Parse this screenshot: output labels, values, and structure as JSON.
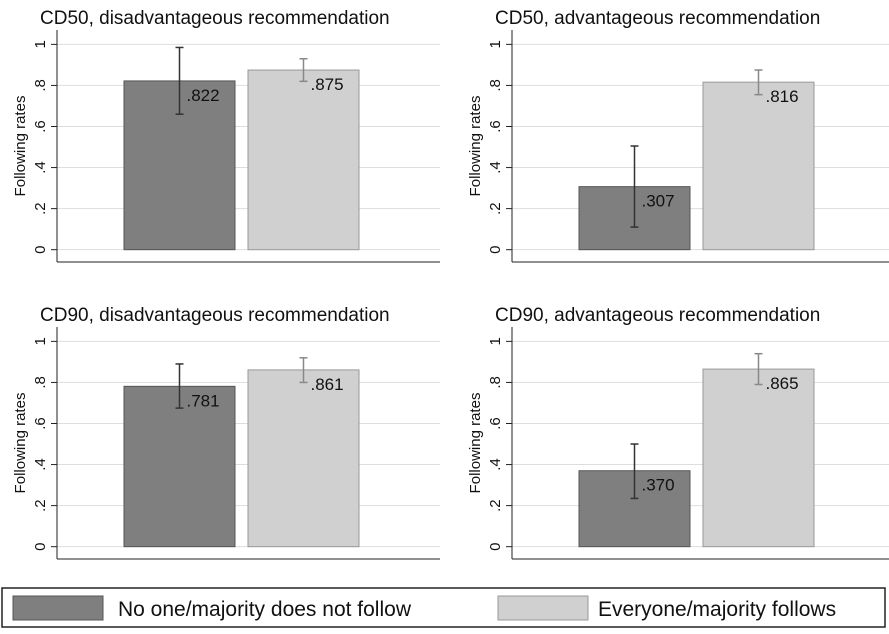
{
  "chart_data": [
    {
      "type": "bar",
      "title": "CD50, disadvantageous recommendation",
      "ylabel": "Following rates",
      "values": [
        0.822,
        0.875
      ],
      "value_labels": [
        ".822",
        ".875"
      ],
      "ci": [
        [
          0.66,
          0.985
        ],
        [
          0.82,
          0.93
        ]
      ],
      "ylim": [
        -0.06,
        1.07
      ],
      "yticks": [
        0,
        {
          "value": 0.2,
          "label": ".2"
        },
        {
          "value": 0.4,
          "label": ".4"
        },
        {
          "value": 0.6,
          "label": ".6"
        },
        {
          "value": 0.8,
          "label": ".8"
        },
        1
      ],
      "grid": true
    },
    {
      "type": "bar",
      "title": "CD50, advantageous recommendation",
      "ylabel": "Following rates",
      "values": [
        0.307,
        0.816
      ],
      "value_labels": [
        ".307",
        ".816"
      ],
      "ci": [
        [
          0.11,
          0.505
        ],
        [
          0.755,
          0.875
        ]
      ],
      "ylim": [
        -0.06,
        1.07
      ],
      "yticks": [
        0,
        {
          "value": 0.2,
          "label": ".2"
        },
        {
          "value": 0.4,
          "label": ".4"
        },
        {
          "value": 0.6,
          "label": ".6"
        },
        {
          "value": 0.8,
          "label": ".8"
        },
        1
      ],
      "grid": true
    },
    {
      "type": "bar",
      "title": "CD90, disadvantageous recommendation",
      "ylabel": "Following rates",
      "values": [
        0.781,
        0.861
      ],
      "value_labels": [
        ".781",
        ".861"
      ],
      "ci": [
        [
          0.675,
          0.89
        ],
        [
          0.8,
          0.92
        ]
      ],
      "ylim": [
        -0.06,
        1.07
      ],
      "yticks": [
        0,
        {
          "value": 0.2,
          "label": ".2"
        },
        {
          "value": 0.4,
          "label": ".4"
        },
        {
          "value": 0.6,
          "label": ".6"
        },
        {
          "value": 0.8,
          "label": ".8"
        },
        1
      ],
      "grid": true
    },
    {
      "type": "bar",
      "title": "CD90, advantageous recommendation",
      "ylabel": "Following rates",
      "values": [
        0.37,
        0.865
      ],
      "value_labels": [
        ".370",
        ".865"
      ],
      "ci": [
        [
          0.235,
          0.5
        ],
        [
          0.79,
          0.94
        ]
      ],
      "ylim": [
        -0.06,
        1.07
      ],
      "yticks": [
        0,
        {
          "value": 0.2,
          "label": ".2"
        },
        {
          "value": 0.4,
          "label": ".4"
        },
        {
          "value": 0.6,
          "label": ".6"
        },
        {
          "value": 0.8,
          "label": ".8"
        },
        1
      ],
      "grid": true
    }
  ],
  "legend": [
    {
      "name": "No one/majority does not follow",
      "color": "#7f7f7f"
    },
    {
      "name": "Everyone/majority follows",
      "color": "#d0d0d0"
    }
  ]
}
